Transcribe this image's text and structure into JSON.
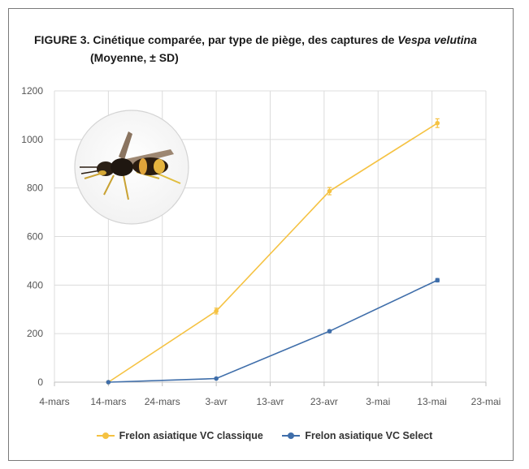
{
  "title": {
    "prefix": "FIGURE 3. Cinétique comparée, par type de piège, des captures de ",
    "species": "Vespa velutina",
    "subtitle": "(Moyenne, ± SD)"
  },
  "colors": {
    "classique": "#f5c242",
    "select": "#3f6eaa",
    "grid": "#dcdcdc",
    "axis": "#bfbfbf"
  },
  "chart_data": {
    "type": "line",
    "title": "FIGURE 3. Cinétique comparée, par type de piège, des captures de Vespa velutina",
    "subtitle": "(Moyenne, ± SD)",
    "xlabel": "",
    "ylabel": "",
    "x_tick_labels": [
      "4-mars",
      "14-mars",
      "24-mars",
      "3-avr",
      "13-avr",
      "23-avr",
      "3-mai",
      "13-mai",
      "23-mai"
    ],
    "y_ticks": [
      0,
      200,
      400,
      600,
      800,
      1000,
      1200
    ],
    "ylim": [
      0,
      1200
    ],
    "grid": true,
    "legend_position": "bottom",
    "series": [
      {
        "name": "Frelon asiatique VC classique",
        "color": "#f5c242",
        "points": [
          {
            "x": "14-mars",
            "y": 0,
            "sd": 0
          },
          {
            "x": "3-avr",
            "y": 293,
            "sd": 12
          },
          {
            "x": "24-avr",
            "y": 787,
            "sd": 15
          },
          {
            "x": "14-mai",
            "y": 1067,
            "sd": 18
          }
        ]
      },
      {
        "name": "Frelon asiatique VC Select",
        "color": "#3f6eaa",
        "points": [
          {
            "x": "14-mars",
            "y": 0,
            "sd": 0
          },
          {
            "x": "3-avr",
            "y": 15,
            "sd": 2
          },
          {
            "x": "24-avr",
            "y": 210,
            "sd": 5
          },
          {
            "x": "14-mai",
            "y": 420,
            "sd": 7
          }
        ]
      }
    ]
  },
  "legend": {
    "classique": "Frelon asiatique VC classique",
    "select": "Frelon asiatique VC Select"
  },
  "image": {
    "icon": "hornet-photo-icon"
  }
}
